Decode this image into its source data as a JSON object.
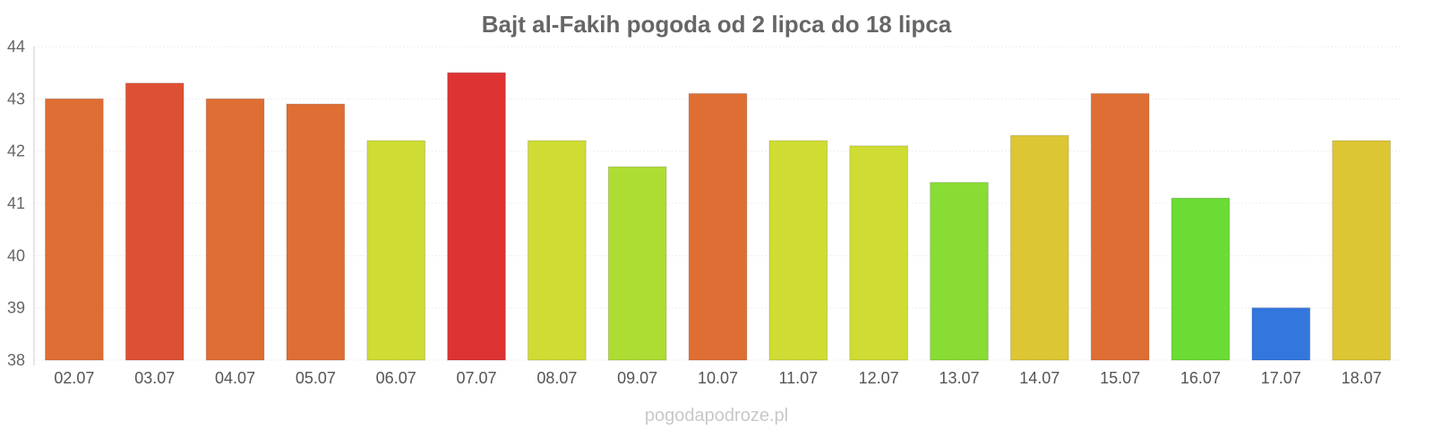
{
  "chart_data": {
    "type": "bar",
    "title": "Bajt al-Fakih pogoda od 2 lipca do 18 lipca",
    "categories": [
      "02.07",
      "03.07",
      "04.07",
      "05.07",
      "06.07",
      "07.07",
      "08.07",
      "09.07",
      "10.07",
      "11.07",
      "12.07",
      "13.07",
      "14.07",
      "15.07",
      "16.07",
      "17.07",
      "18.07"
    ],
    "values": [
      43.0,
      43.3,
      43.0,
      42.9,
      42.2,
      43.5,
      42.2,
      41.7,
      43.1,
      42.2,
      42.1,
      41.4,
      42.3,
      43.1,
      41.1,
      39.0,
      42.2
    ],
    "colors": [
      "#de6e33",
      "#de5033",
      "#de6e33",
      "#de6e33",
      "#cfdc33",
      "#dd3333",
      "#cfdc33",
      "#addc33",
      "#de6e33",
      "#cfdc33",
      "#cfdc33",
      "#88dc33",
      "#dcc633",
      "#de6e33",
      "#6adc33",
      "#3377dd",
      "#dcc633"
    ],
    "yticks": [
      "38",
      "39",
      "40",
      "41",
      "42",
      "43",
      "44"
    ],
    "ylim": [
      38,
      44
    ],
    "xlabel": "",
    "ylabel": "",
    "grid": true
  },
  "watermark": "pogodapodroze.pl"
}
